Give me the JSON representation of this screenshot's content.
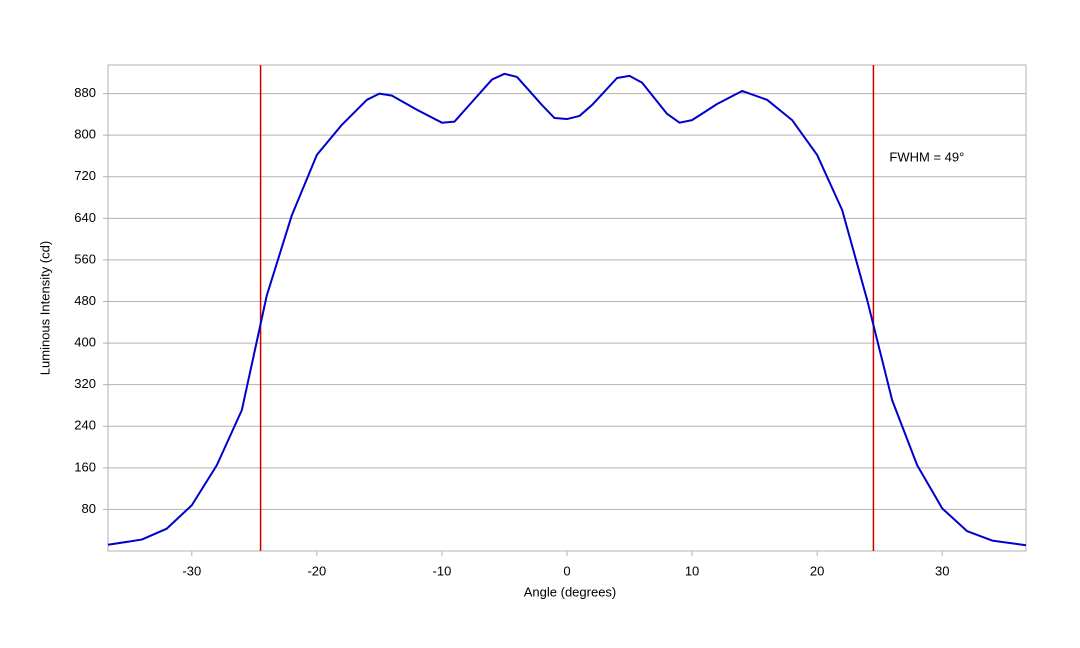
{
  "chart_data": {
    "type": "line",
    "x_label": "Angle (degrees)",
    "y_label": "Luminous Intensity (cd)",
    "annotation": "FWHM = 49°",
    "xlim": [
      -36.7,
      36.7
    ],
    "ylim": [
      0,
      935
    ],
    "xticks": [
      -30,
      -20,
      -10,
      0,
      10,
      20,
      30
    ],
    "yticks": [
      80,
      160,
      240,
      320,
      400,
      480,
      560,
      640,
      720,
      800,
      880
    ],
    "grid": true,
    "x": [
      -36.7,
      -34,
      -32,
      -30,
      -28,
      -26,
      -24,
      -22,
      -20,
      -18,
      -16,
      -15,
      -14,
      -12,
      -10,
      -9,
      -8,
      -6,
      -5,
      -4,
      -2,
      -1,
      0,
      1,
      2,
      4,
      5,
      6,
      8,
      9,
      10,
      12,
      14,
      16,
      18,
      20,
      22,
      24,
      26,
      28,
      30,
      32,
      34,
      36.7
    ],
    "series": [
      {
        "color": "#0000cc",
        "values": [
          12,
          22,
          43,
          88,
          165,
          271,
          492,
          646,
          762,
          820,
          868,
          880,
          876,
          849,
          824,
          826,
          853,
          907,
          918,
          912,
          858,
          833,
          831,
          837,
          858,
          910,
          914,
          901,
          841,
          824,
          829,
          860,
          885,
          868,
          829,
          762,
          656,
          483,
          290,
          165,
          82,
          38,
          20,
          11
        ]
      }
    ],
    "vlines": {
      "color": "#cc0000",
      "x": [
        -24.5,
        24.5
      ]
    }
  }
}
